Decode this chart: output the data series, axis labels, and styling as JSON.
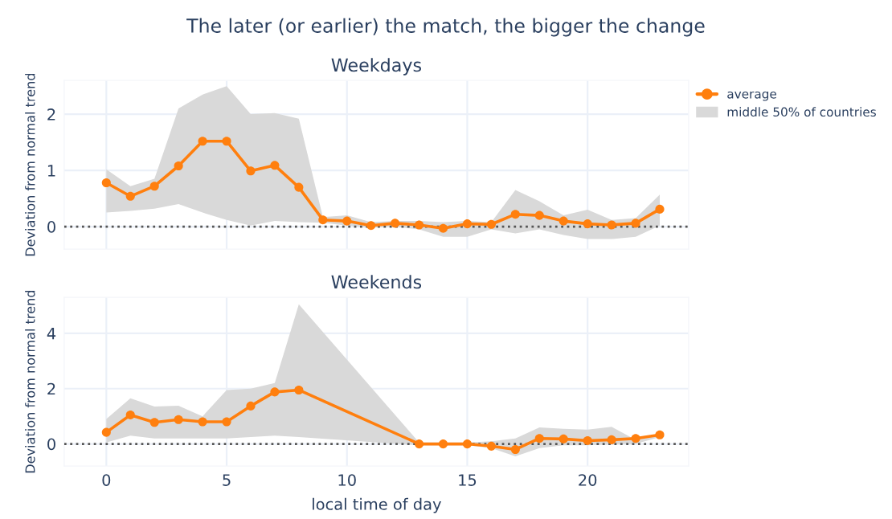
{
  "chart_data": [
    {
      "type": "line",
      "title": "The later (or earlier) the match, the bigger the change",
      "subtitle": "Weekdays",
      "ylabel": "Deviation from normal trend",
      "x": [
        0,
        1,
        2,
        3,
        4,
        5,
        6,
        7,
        8,
        9,
        10,
        11,
        12,
        13,
        14,
        15,
        16,
        17,
        18,
        19,
        20,
        21,
        22,
        23
      ],
      "series": [
        {
          "name": "average",
          "color": "#ff7f0e",
          "values": [
            0.78,
            0.54,
            0.72,
            1.08,
            1.52,
            1.52,
            0.99,
            1.09,
            0.7,
            0.12,
            0.1,
            0.02,
            0.06,
            0.03,
            -0.03,
            0.05,
            0.04,
            0.22,
            0.2,
            0.1,
            0.05,
            0.03,
            0.06,
            0.31
          ],
          "upper": [
            1.02,
            0.72,
            0.85,
            2.1,
            2.35,
            2.5,
            2.0,
            2.02,
            1.92,
            0.17,
            0.2,
            0.08,
            0.1,
            0.1,
            0.08,
            0.1,
            0.08,
            0.65,
            0.45,
            0.2,
            0.3,
            0.12,
            0.15,
            0.57
          ],
          "lower": [
            0.25,
            0.28,
            0.32,
            0.4,
            0.25,
            0.12,
            0.02,
            0.1,
            0.08,
            0.07,
            0.02,
            -0.02,
            0.0,
            -0.05,
            -0.18,
            -0.18,
            -0.05,
            -0.12,
            -0.05,
            -0.15,
            -0.22,
            -0.22,
            -0.18,
            0.02
          ]
        }
      ],
      "annotations": [
        "middle 50% of countries"
      ],
      "xlim": [
        -1.75,
        24.2
      ],
      "xticks": [
        0,
        5,
        10,
        15,
        20
      ],
      "ylim": [
        -0.4,
        2.6
      ],
      "yticks": [
        0,
        1,
        2
      ],
      "tick_labels": "y",
      "ref_lines": [
        {
          "axis": "y",
          "value": 0,
          "color": "#555555",
          "line_style": "dotted"
        }
      ],
      "grid": true,
      "legend": "top right",
      "marker": "circle",
      "line_style": "solid"
    },
    {
      "type": "line",
      "subtitle": "Weekends",
      "xlabel": "local time of day",
      "ylabel": "Deviation from normal trend",
      "x": [
        0,
        1,
        2,
        3,
        4,
        5,
        6,
        7,
        8,
        13,
        14,
        15,
        16,
        17,
        18,
        19,
        20,
        21,
        22,
        23
      ],
      "series": [
        {
          "color": "#ff7f0e",
          "values": [
            0.42,
            1.05,
            0.78,
            0.88,
            0.8,
            0.8,
            1.37,
            1.88,
            1.95,
            0.0,
            0.0,
            0.0,
            -0.08,
            -0.2,
            0.2,
            0.18,
            0.12,
            0.15,
            0.2,
            0.33
          ],
          "upper": [
            0.9,
            1.65,
            1.35,
            1.38,
            1.0,
            1.95,
            2.0,
            2.2,
            5.05,
            0.05,
            0.05,
            0.05,
            0.1,
            0.2,
            0.6,
            0.55,
            0.52,
            0.62,
            0.15,
            0.35
          ],
          "lower": [
            0.05,
            0.3,
            0.2,
            0.2,
            0.2,
            0.2,
            0.25,
            0.3,
            0.25,
            -0.05,
            -0.05,
            -0.05,
            -0.15,
            -0.45,
            -0.15,
            -0.05,
            -0.05,
            -0.02,
            0.0,
            0.25
          ]
        }
      ],
      "xlim": [
        -1.75,
        24.2
      ],
      "xticks": [
        0,
        5,
        10,
        15,
        20
      ],
      "ylim": [
        -0.8,
        5.3
      ],
      "yticks": [
        0,
        2,
        4
      ],
      "ref_lines": [
        {
          "axis": "y",
          "value": 0,
          "color": "#555555",
          "line_style": "dotted"
        }
      ],
      "grid": true,
      "marker": "circle",
      "line_style": "solid"
    }
  ]
}
